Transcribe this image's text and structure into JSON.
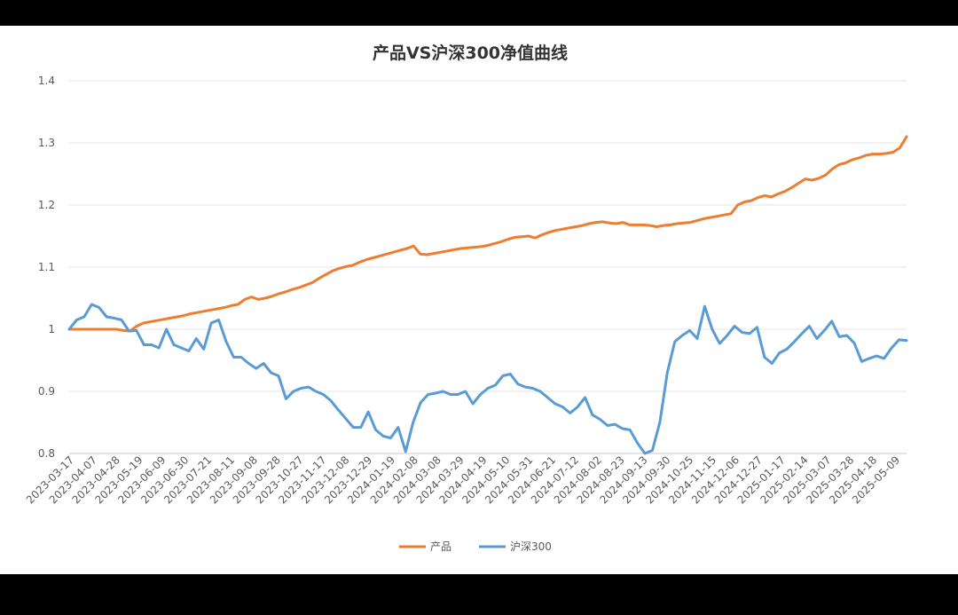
{
  "chart_data": {
    "type": "line",
    "title": "产品VS沪深300净值曲线",
    "xlabel": "",
    "ylabel": "",
    "ylim": [
      0.8,
      1.4
    ],
    "yticks": [
      0.8,
      0.9,
      1,
      1.1,
      1.2,
      1.3,
      1.4
    ],
    "ytick_labels": [
      "0.8",
      "0.9",
      "1",
      "1.1",
      "1.2",
      "1.3",
      "1.4"
    ],
    "x_tick_labels": [
      "2023-03-17",
      "2023-04-07",
      "2023-04-28",
      "2023-05-19",
      "2023-06-09",
      "2023-06-30",
      "2023-07-21",
      "2023-08-11",
      "2023-09-08",
      "2023-09-28",
      "2023-10-27",
      "2023-11-17",
      "2023-12-08",
      "2023-12-29",
      "2024-01-19",
      "2024-02-08",
      "2024-03-08",
      "2024-03-29",
      "2024-04-19",
      "2024-05-10",
      "2024-05-31",
      "2024-06-21",
      "2024-07-12",
      "2024-08-02",
      "2024-08-23",
      "2024-09-13",
      "2024-09-30",
      "2024-10-25",
      "2024-11-15",
      "2024-12-06",
      "2024-12-27",
      "2025-01-17",
      "2025-02-14",
      "2025-03-07",
      "2025-03-28",
      "2025-04-18",
      "2025-05-09"
    ],
    "grid": true,
    "legend_position": "bottom",
    "series": [
      {
        "name": "产品",
        "color": "#ED7D31",
        "values": [
          1.0,
          1.0,
          1.0,
          1.0,
          1.0,
          1.0,
          1.0,
          1.0,
          0.998,
          0.997,
          1.005,
          1.01,
          1.012,
          1.014,
          1.016,
          1.018,
          1.02,
          1.022,
          1.025,
          1.027,
          1.029,
          1.031,
          1.033,
          1.035,
          1.038,
          1.04,
          1.048,
          1.052,
          1.048,
          1.05,
          1.053,
          1.057,
          1.06,
          1.064,
          1.067,
          1.071,
          1.075,
          1.082,
          1.088,
          1.094,
          1.098,
          1.101,
          1.103,
          1.108,
          1.112,
          1.115,
          1.118,
          1.121,
          1.124,
          1.127,
          1.13,
          1.134,
          1.121,
          1.12,
          1.122,
          1.124,
          1.126,
          1.128,
          1.13,
          1.131,
          1.132,
          1.133,
          1.135,
          1.138,
          1.141,
          1.145,
          1.148,
          1.149,
          1.15,
          1.147,
          1.152,
          1.156,
          1.159,
          1.161,
          1.163,
          1.165,
          1.167,
          1.17,
          1.172,
          1.173,
          1.171,
          1.17,
          1.172,
          1.168,
          1.168,
          1.168,
          1.167,
          1.165,
          1.167,
          1.168,
          1.17,
          1.171,
          1.172,
          1.175,
          1.178,
          1.18,
          1.182,
          1.184,
          1.186,
          1.2,
          1.205,
          1.207,
          1.212,
          1.215,
          1.213,
          1.218,
          1.222,
          1.228,
          1.235,
          1.242,
          1.24,
          1.243,
          1.248,
          1.258,
          1.265,
          1.268,
          1.273,
          1.276,
          1.28,
          1.282,
          1.282,
          1.283,
          1.285,
          1.292,
          1.31
        ]
      },
      {
        "name": "沪深300",
        "color": "#5B9BD5",
        "values": [
          1.0,
          1.015,
          1.02,
          1.04,
          1.035,
          1.02,
          1.018,
          1.015,
          0.997,
          0.998,
          0.975,
          0.975,
          0.97,
          1.0,
          0.975,
          0.97,
          0.965,
          0.985,
          0.968,
          1.01,
          1.015,
          0.98,
          0.955,
          0.955,
          0.945,
          0.937,
          0.945,
          0.93,
          0.925,
          0.888,
          0.9,
          0.905,
          0.907,
          0.9,
          0.895,
          0.885,
          0.87,
          0.856,
          0.842,
          0.842,
          0.867,
          0.838,
          0.828,
          0.825,
          0.842,
          0.803,
          0.85,
          0.882,
          0.895,
          0.897,
          0.9,
          0.895,
          0.895,
          0.9,
          0.88,
          0.895,
          0.905,
          0.91,
          0.925,
          0.928,
          0.912,
          0.907,
          0.905,
          0.9,
          0.89,
          0.88,
          0.875,
          0.865,
          0.875,
          0.89,
          0.862,
          0.855,
          0.845,
          0.847,
          0.84,
          0.838,
          0.817,
          0.8,
          0.805,
          0.85,
          0.93,
          0.98,
          0.99,
          0.998,
          0.985,
          1.037,
          1.0,
          0.977,
          0.99,
          1.005,
          0.995,
          0.993,
          1.003,
          0.955,
          0.945,
          0.962,
          0.968,
          0.98,
          0.993,
          1.005,
          0.985,
          0.998,
          1.013,
          0.988,
          0.99,
          0.978,
          0.948,
          0.953,
          0.957,
          0.953,
          0.97,
          0.983,
          0.982
        ]
      }
    ]
  }
}
